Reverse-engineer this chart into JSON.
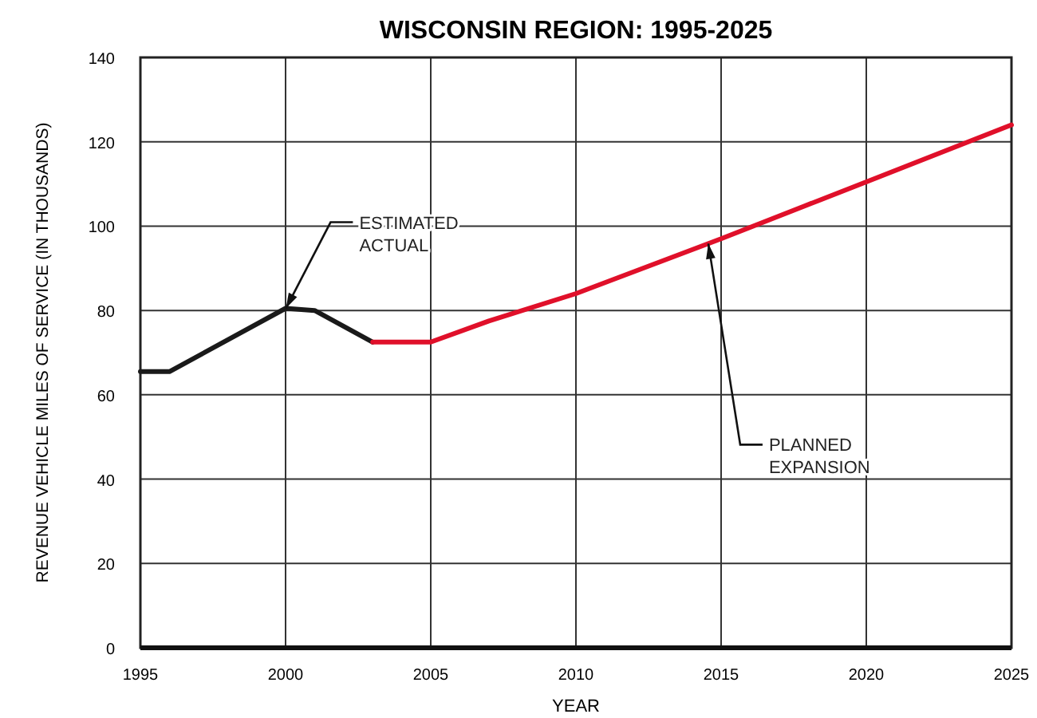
{
  "chart_data": {
    "type": "line",
    "title": "WISCONSIN REGION: 1995-2025",
    "xlabel": "YEAR",
    "ylabel": "REVENUE VEHICLE MILES OF SERVICE (IN THOUSANDS)",
    "xlim": [
      1995,
      2025
    ],
    "xticks": [
      1995,
      2000,
      2005,
      2010,
      2015,
      2020,
      2025
    ],
    "ylim": [
      0,
      140
    ],
    "yticks": [
      0,
      20,
      40,
      60,
      80,
      100,
      120,
      140
    ],
    "grid": true,
    "line_style": "solid",
    "marker": "none",
    "series": [
      {
        "name": "ESTIMATED ACTUAL",
        "color": "#1a1a1a",
        "x": [
          1995,
          1996,
          2000,
          2001,
          2003
        ],
        "values": [
          65.5,
          65.5,
          80.5,
          80,
          72.5
        ]
      },
      {
        "name": "PLANNED EXPANSION",
        "color": "#e0102a",
        "x": [
          2003,
          2005,
          2007,
          2010,
          2015,
          2020,
          2025
        ],
        "values": [
          72.5,
          72.5,
          77.5,
          84,
          97,
          110.5,
          124
        ]
      }
    ]
  }
}
